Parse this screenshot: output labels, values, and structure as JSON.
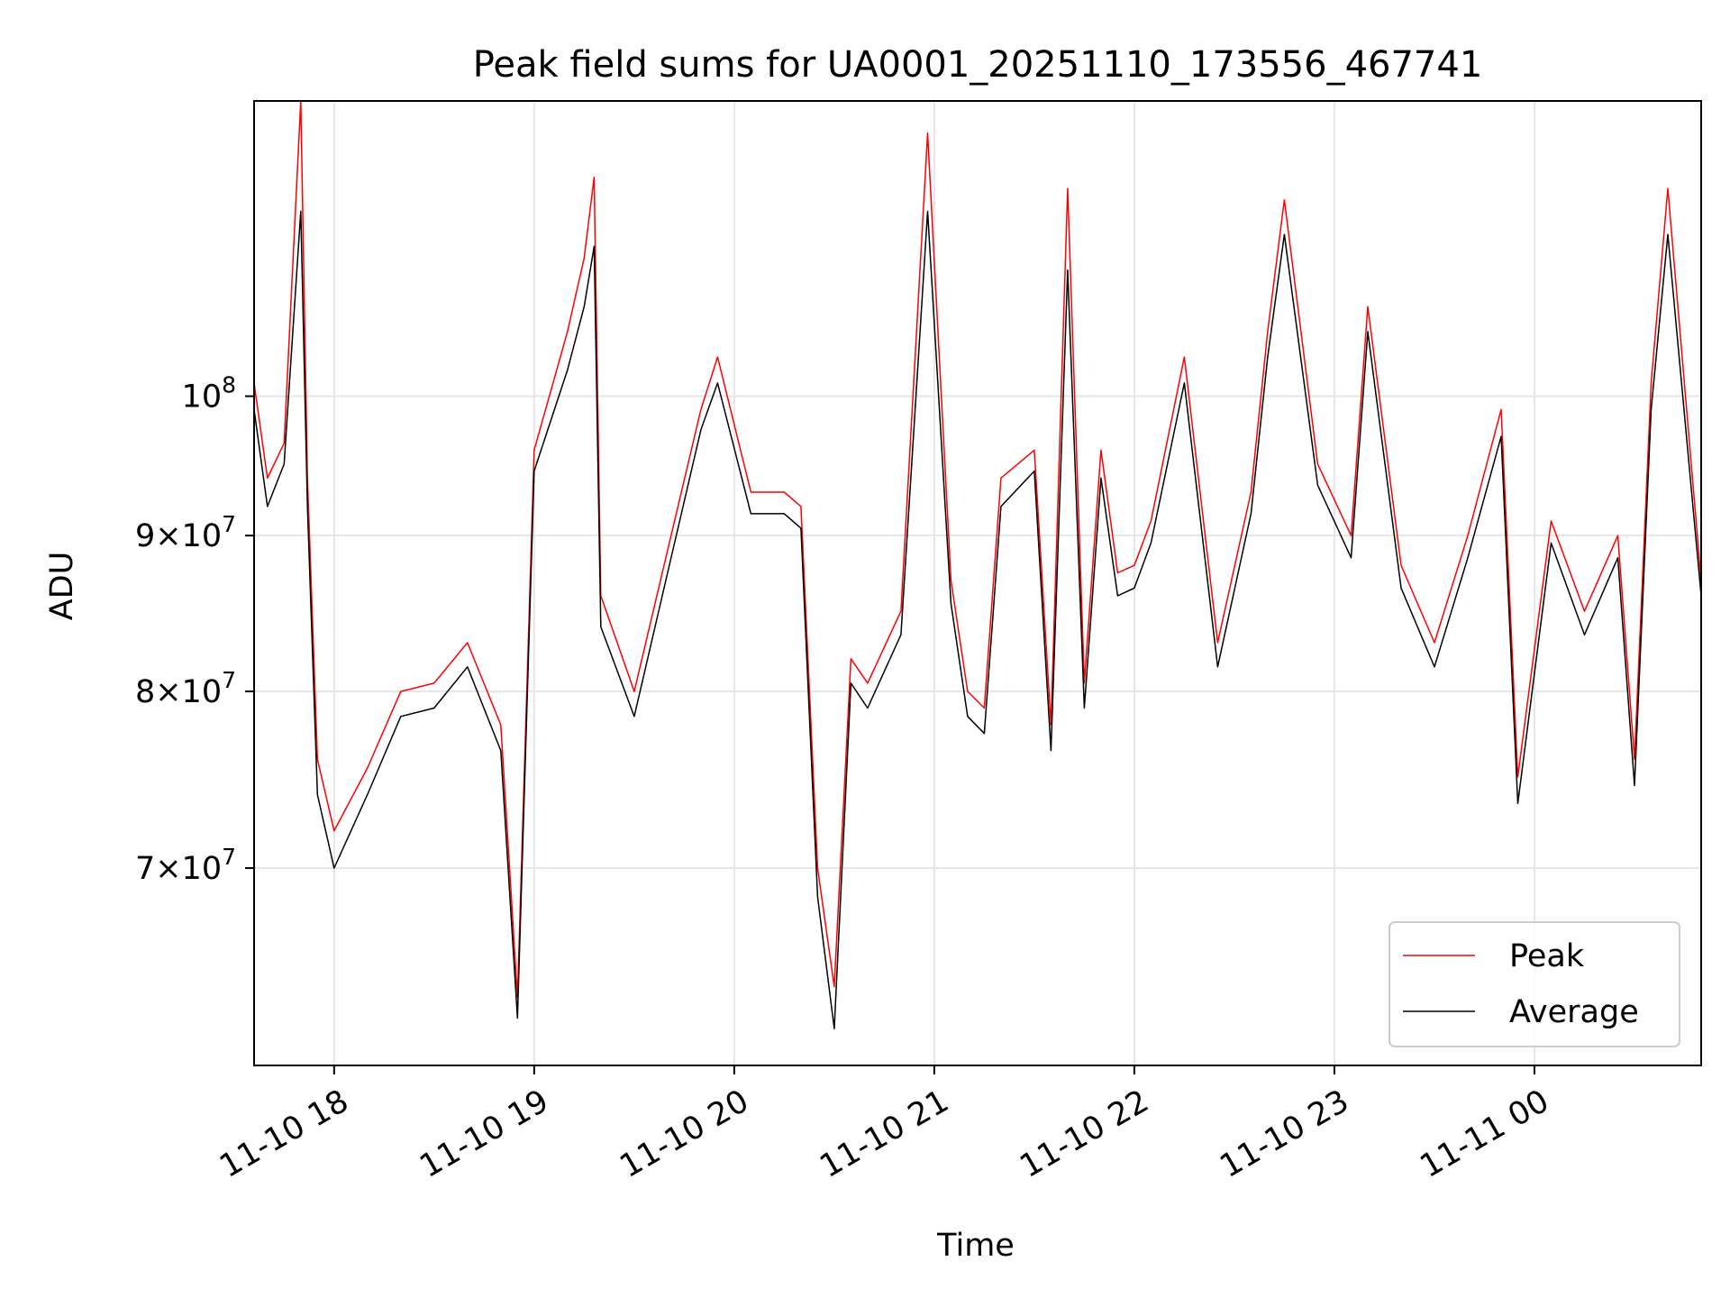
{
  "chart_data": {
    "type": "line",
    "title": "Peak field sums for UA0001_20251110_173556_467741",
    "xlabel": "Time",
    "ylabel": "ADU",
    "x_range": [
      "2025-11-10 17:36",
      "2025-11-11 00:50"
    ],
    "y_scale": "log",
    "ylim": [
      60300000,
      125000000
    ],
    "x_ticks": [
      {
        "t": "2025-11-10 18:00",
        "label": "11-10 18"
      },
      {
        "t": "2025-11-10 19:00",
        "label": "11-10 19"
      },
      {
        "t": "2025-11-10 20:00",
        "label": "11-10 20"
      },
      {
        "t": "2025-11-10 21:00",
        "label": "11-10 21"
      },
      {
        "t": "2025-11-10 22:00",
        "label": "11-10 22"
      },
      {
        "t": "2025-11-10 23:00",
        "label": "11-10 23"
      },
      {
        "t": "2025-11-11 00:00",
        "label": "11-11 00"
      }
    ],
    "y_ticks": [
      {
        "v": 70000000,
        "mant": "7",
        "exp": "7"
      },
      {
        "v": 80000000,
        "mant": "8",
        "exp": "7"
      },
      {
        "v": 90000000,
        "mant": "9",
        "exp": "7"
      },
      {
        "v": 100000000,
        "mant": "",
        "exp": "8"
      }
    ],
    "grid": true,
    "legend_position": "lower-right",
    "series": [
      {
        "name": "Peak",
        "color": "#ff0000",
        "note": "tracks Average with upward spikes",
        "x": [
          "2025-11-10 17:36",
          "2025-11-10 17:40",
          "2025-11-10 17:45",
          "2025-11-10 17:50",
          "2025-11-10 17:52",
          "2025-11-10 17:55",
          "2025-11-10 18:00",
          "2025-11-10 18:10",
          "2025-11-10 18:20",
          "2025-11-10 18:30",
          "2025-11-10 18:40",
          "2025-11-10 18:50",
          "2025-11-10 18:55",
          "2025-11-10 19:00",
          "2025-11-10 19:10",
          "2025-11-10 19:15",
          "2025-11-10 19:18",
          "2025-11-10 19:20",
          "2025-11-10 19:30",
          "2025-11-10 19:40",
          "2025-11-10 19:50",
          "2025-11-10 19:55",
          "2025-11-10 20:05",
          "2025-11-10 20:15",
          "2025-11-10 20:20",
          "2025-11-10 20:25",
          "2025-11-10 20:30",
          "2025-11-10 20:35",
          "2025-11-10 20:40",
          "2025-11-10 20:50",
          "2025-11-10 20:58",
          "2025-11-10 21:05",
          "2025-11-10 21:10",
          "2025-11-10 21:15",
          "2025-11-10 21:20",
          "2025-11-10 21:30",
          "2025-11-10 21:35",
          "2025-11-10 21:40",
          "2025-11-10 21:45",
          "2025-11-10 21:50",
          "2025-11-10 21:55",
          "2025-11-10 22:00",
          "2025-11-10 22:05",
          "2025-11-10 22:15",
          "2025-11-10 22:25",
          "2025-11-10 22:35",
          "2025-11-10 22:40",
          "2025-11-10 22:45",
          "2025-11-10 22:55",
          "2025-11-10 23:05",
          "2025-11-10 23:10",
          "2025-11-10 23:20",
          "2025-11-10 23:30",
          "2025-11-10 23:40",
          "2025-11-10 23:50",
          "2025-11-10 23:55",
          "2025-11-11 00:05",
          "2025-11-11 00:15",
          "2025-11-11 00:25",
          "2025-11-11 00:30",
          "2025-11-11 00:35",
          "2025-11-11 00:40",
          "2025-11-11 00:50"
        ],
        "y": [
          101000000,
          94000000,
          96500000,
          125000000,
          94000000,
          76000000,
          72000000,
          75500000,
          80000000,
          80500000,
          83000000,
          78000000,
          63500000,
          96000000,
          105000000,
          111000000,
          118000000,
          86000000,
          80000000,
          89000000,
          99000000,
          103000000,
          93000000,
          93000000,
          92000000,
          70000000,
          64000000,
          82000000,
          80500000,
          85000000,
          122000000,
          87000000,
          80000000,
          79000000,
          94000000,
          96000000,
          78000000,
          117000000,
          80500000,
          96000000,
          87500000,
          88000000,
          91000000,
          103000000,
          83000000,
          93000000,
          105000000,
          116000000,
          95000000,
          90000000,
          107000000,
          88000000,
          83000000,
          90000000,
          99000000,
          75000000,
          91000000,
          85000000,
          90000000,
          76000000,
          101000000,
          117000000,
          87000000
        ]
      },
      {
        "name": "Average",
        "color": "#000000",
        "note": "smoothed version of Peak",
        "x": [
          "2025-11-10 17:36",
          "2025-11-10 17:40",
          "2025-11-10 17:45",
          "2025-11-10 17:50",
          "2025-11-10 17:52",
          "2025-11-10 17:55",
          "2025-11-10 18:00",
          "2025-11-10 18:10",
          "2025-11-10 18:20",
          "2025-11-10 18:30",
          "2025-11-10 18:40",
          "2025-11-10 18:50",
          "2025-11-10 18:55",
          "2025-11-10 19:00",
          "2025-11-10 19:10",
          "2025-11-10 19:15",
          "2025-11-10 19:18",
          "2025-11-10 19:20",
          "2025-11-10 19:30",
          "2025-11-10 19:40",
          "2025-11-10 19:50",
          "2025-11-10 19:55",
          "2025-11-10 20:05",
          "2025-11-10 20:15",
          "2025-11-10 20:20",
          "2025-11-10 20:25",
          "2025-11-10 20:30",
          "2025-11-10 20:35",
          "2025-11-10 20:40",
          "2025-11-10 20:50",
          "2025-11-10 20:58",
          "2025-11-10 21:05",
          "2025-11-10 21:10",
          "2025-11-10 21:15",
          "2025-11-10 21:20",
          "2025-11-10 21:30",
          "2025-11-10 21:35",
          "2025-11-10 21:40",
          "2025-11-10 21:45",
          "2025-11-10 21:50",
          "2025-11-10 21:55",
          "2025-11-10 22:00",
          "2025-11-10 22:05",
          "2025-11-10 22:15",
          "2025-11-10 22:25",
          "2025-11-10 22:35",
          "2025-11-10 22:40",
          "2025-11-10 22:45",
          "2025-11-10 22:55",
          "2025-11-10 23:05",
          "2025-11-10 23:10",
          "2025-11-10 23:20",
          "2025-11-10 23:30",
          "2025-11-10 23:40",
          "2025-11-10 23:50",
          "2025-11-10 23:55",
          "2025-11-11 00:05",
          "2025-11-11 00:15",
          "2025-11-11 00:25",
          "2025-11-11 00:30",
          "2025-11-11 00:35",
          "2025-11-11 00:40",
          "2025-11-11 00:50"
        ],
        "y": [
          99000000,
          92000000,
          95000000,
          115000000,
          92000000,
          74000000,
          70000000,
          74000000,
          78500000,
          79000000,
          81500000,
          76500000,
          62500000,
          94500000,
          102000000,
          107000000,
          112000000,
          84000000,
          78500000,
          87500000,
          97500000,
          101000000,
          91500000,
          91500000,
          90500000,
          68500000,
          62000000,
          80500000,
          79000000,
          83500000,
          115000000,
          85500000,
          78500000,
          77500000,
          92000000,
          94500000,
          76500000,
          110000000,
          79000000,
          94000000,
          86000000,
          86500000,
          89500000,
          101000000,
          81500000,
          91500000,
          103000000,
          113000000,
          93500000,
          88500000,
          105000000,
          86500000,
          81500000,
          88500000,
          97000000,
          73500000,
          89500000,
          83500000,
          88500000,
          74500000,
          99000000,
          113000000,
          86000000
        ]
      }
    ]
  }
}
